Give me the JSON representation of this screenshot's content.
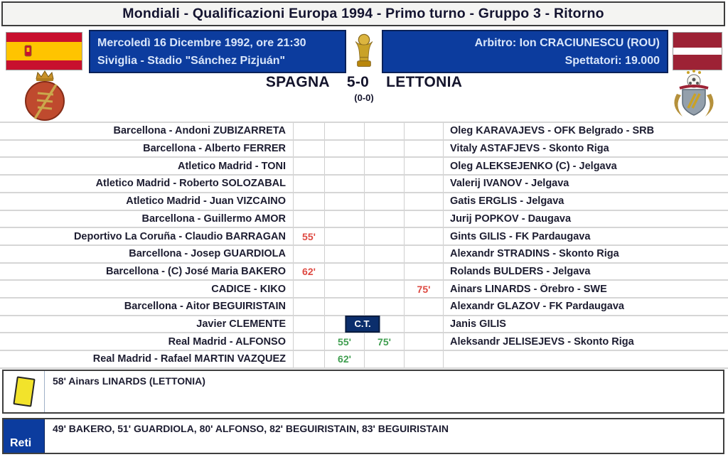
{
  "title": "Mondiali - Qualificazioni Europa 1994 - Primo turno - Gruppo 3 - Ritorno",
  "header": {
    "date_line": "Mercoledì 16 Dicembre 1992, ore 21:30",
    "venue_line": "Siviglia - Stadio \"Sánchez Pizjuán\"",
    "referee_line": "Arbitro: Ion CRACIUNESCU (ROU)",
    "attendance_line": "Spettatori: 19.000"
  },
  "score": {
    "home_team": "SPAGNA",
    "result": "5-0",
    "away_team": "LETTONIA",
    "halftime": "(0-0)"
  },
  "lineup": {
    "ct_label": "C.T.",
    "rows": [
      {
        "home": "Barcellona - Andoni ZUBIZARRETA",
        "home_out": "",
        "home_in": "",
        "away_in": "",
        "away_out": "",
        "away": "Oleg KARAVAJEVS - OFK Belgrado - SRB",
        "ct": false
      },
      {
        "home": "Barcellona - Alberto FERRER",
        "home_out": "",
        "home_in": "",
        "away_in": "",
        "away_out": "",
        "away": "Vitaly ASTAFJEVS - Skonto Riga",
        "ct": false
      },
      {
        "home": "Atletico Madrid - TONI",
        "home_out": "",
        "home_in": "",
        "away_in": "",
        "away_out": "",
        "away": "Oleg ALEKSEJENKO (C) - Jelgava",
        "ct": false
      },
      {
        "home": "Atletico Madrid - Roberto SOLOZABAL",
        "home_out": "",
        "home_in": "",
        "away_in": "",
        "away_out": "",
        "away": "Valerij IVANOV - Jelgava",
        "ct": false
      },
      {
        "home": "Atletico Madrid - Juan VIZCAINO",
        "home_out": "",
        "home_in": "",
        "away_in": "",
        "away_out": "",
        "away": "Gatis ERGLIS - Jelgava",
        "ct": false
      },
      {
        "home": "Barcellona - Guillermo AMOR",
        "home_out": "",
        "home_in": "",
        "away_in": "",
        "away_out": "",
        "away": "Jurij POPKOV - Daugava",
        "ct": false
      },
      {
        "home": "Deportivo La Coruña - Claudio BARRAGAN",
        "home_out": "55'",
        "home_in": "",
        "away_in": "",
        "away_out": "",
        "away": "Gints GILIS - FK Pardaugava",
        "ct": false
      },
      {
        "home": "Barcellona - Josep GUARDIOLA",
        "home_out": "",
        "home_in": "",
        "away_in": "",
        "away_out": "",
        "away": "Alexandr STRADINS - Skonto Riga",
        "ct": false
      },
      {
        "home": "Barcellona - (C) José Maria BAKERO",
        "home_out": "62'",
        "home_in": "",
        "away_in": "",
        "away_out": "",
        "away": "Rolands BULDERS - Jelgava",
        "ct": false
      },
      {
        "home": "CADICE - KIKO",
        "home_out": "",
        "home_in": "",
        "away_in": "",
        "away_out": "75'",
        "away": "Ainars LINARDS - Örebro - SWE",
        "ct": false
      },
      {
        "home": "Barcellona - Aitor BEGUIRISTAIN",
        "home_out": "",
        "home_in": "",
        "away_in": "",
        "away_out": "",
        "away": "Alexandr GLAZOV - FK Pardaugava",
        "ct": false
      },
      {
        "home": "Javier CLEMENTE",
        "home_out": "",
        "home_in": "",
        "away_in": "",
        "away_out": "",
        "away": "Janis GILIS",
        "ct": true
      },
      {
        "home": "Real Madrid - ALFONSO",
        "home_out": "",
        "home_in": "55'",
        "away_in": "75'",
        "away_out": "",
        "away": "Aleksandr JELISEJEVS - Skonto Riga",
        "ct": false
      },
      {
        "home": "Real Madrid - Rafael MARTIN VAZQUEZ",
        "home_out": "",
        "home_in": "62'",
        "away_in": "",
        "away_out": "",
        "away": "",
        "ct": false
      }
    ]
  },
  "bookings": {
    "text": "58' Ainars LINARDS (LETTONIA)"
  },
  "goals": {
    "label": "Reti",
    "text": "49' BAKERO, 51' GUARDIOLA, 80' ALFONSO, 82' BEGUIRISTAIN, 83' BEGUIRISTAIN"
  },
  "colors": {
    "header_blue": "#0c3c9e",
    "sub_out_red": "#de4a42",
    "sub_in_green": "#3f9e4f",
    "card_yellow": "#f2e32b"
  }
}
